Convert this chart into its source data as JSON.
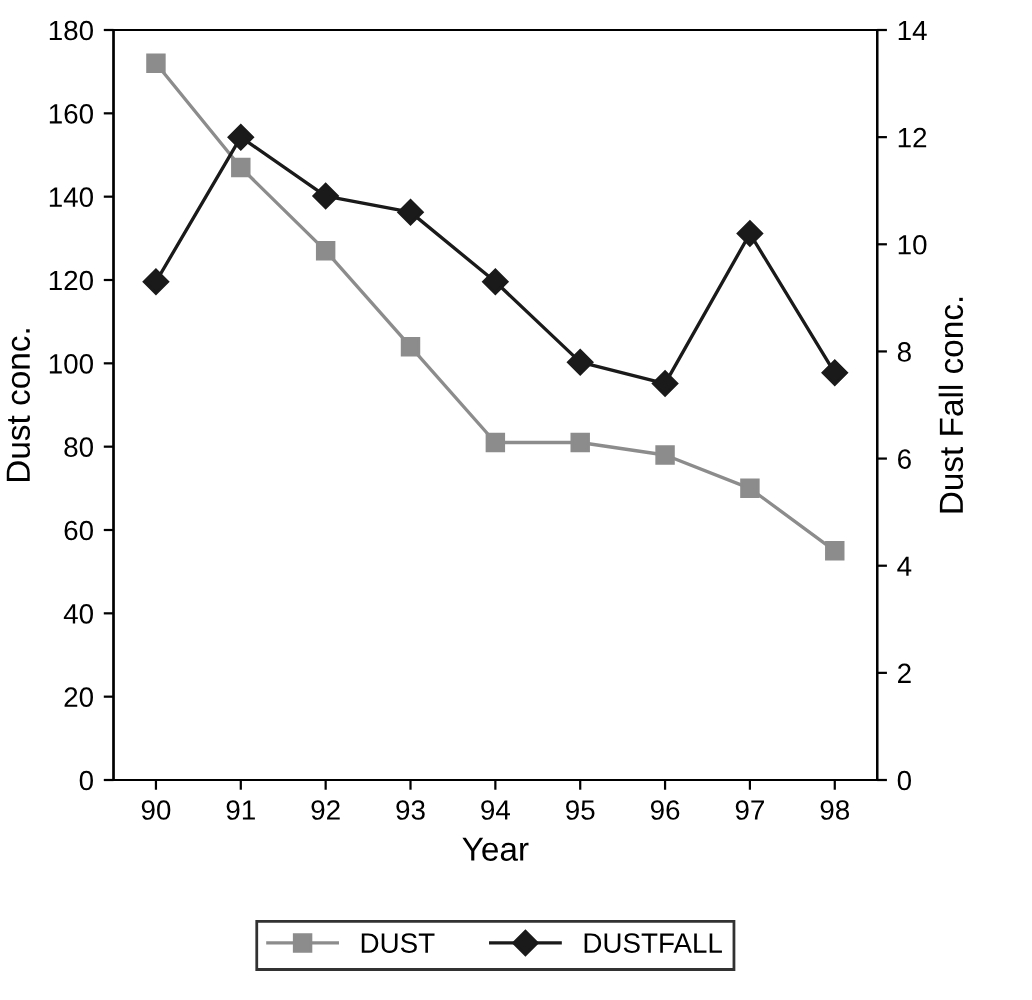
{
  "chart_data": {
    "type": "line",
    "xlabel": "Year",
    "ylabel": "Dust conc.",
    "y2label": "Dust Fall conc.",
    "categories": [
      "90",
      "91",
      "92",
      "93",
      "94",
      "95",
      "96",
      "97",
      "98"
    ],
    "series": [
      {
        "name": "DUST",
        "color": "#8c8c8c",
        "marker": "square",
        "values": [
          172,
          147,
          127,
          104,
          81,
          81,
          78,
          70,
          55
        ]
      },
      {
        "name": "DUSTFALL",
        "color": "#1a1a1a",
        "marker": "diamond",
        "axis": "y2",
        "values": [
          9.3,
          12.0,
          10.9,
          10.6,
          9.3,
          7.8,
          7.4,
          10.2,
          7.6
        ]
      }
    ],
    "ylim": [
      0,
      180
    ],
    "yticks": [
      0,
      20,
      40,
      60,
      80,
      100,
      120,
      140,
      160,
      180
    ],
    "y2lim": [
      0,
      14
    ],
    "y2ticks": [
      0,
      2,
      4,
      6,
      8,
      10,
      12,
      14
    ],
    "grid": false,
    "legend": "bottom",
    "line_style": "solid"
  }
}
